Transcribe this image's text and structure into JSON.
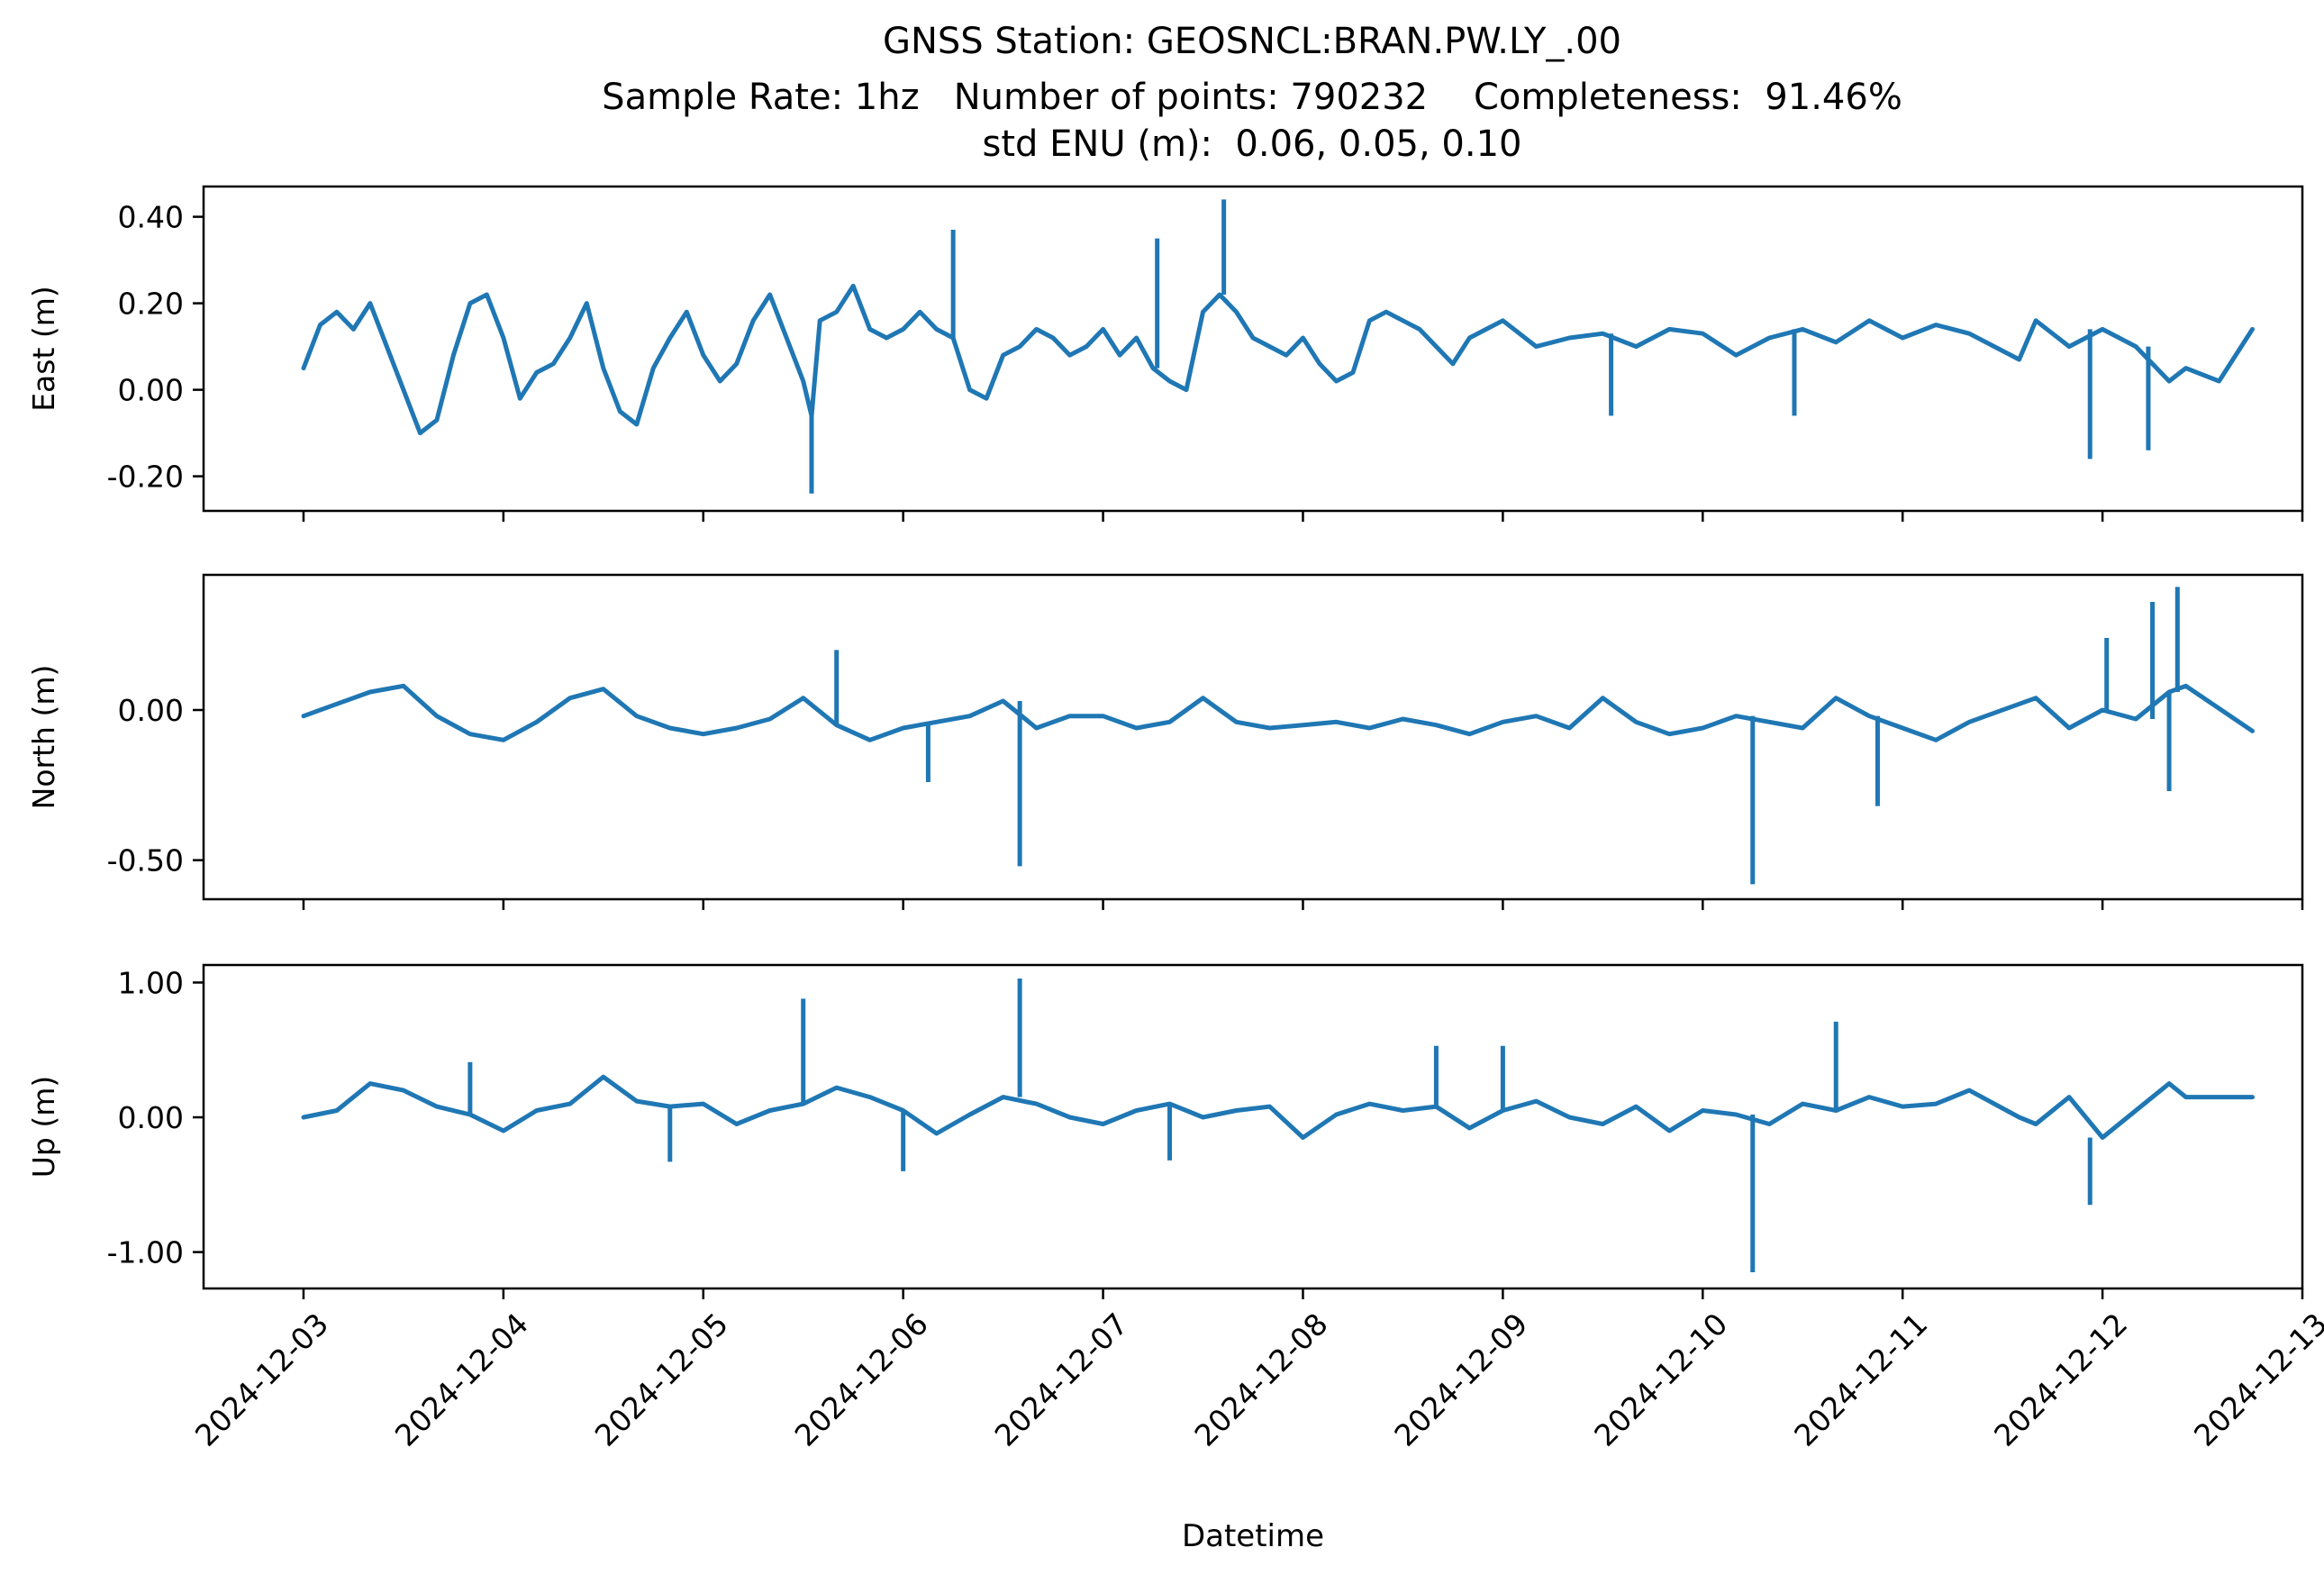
{
  "figure": {
    "title_lines": [
      "GNSS Station: GEOSNCL:BRAN.PW.LY_.00",
      "Sample Rate: 1hz   Number of points: 790232    Completeness:  91.46%",
      "std ENU (m):  0.06, 0.05, 0.10"
    ]
  },
  "chart_data": [
    {
      "type": "line",
      "ylabel": "East (m)",
      "xlabel": "",
      "ylim": [
        -0.28,
        0.47
      ],
      "yticks": [
        -0.2,
        0.0,
        0.2,
        0.4
      ],
      "ytick_labels": [
        "-0.20",
        "0.00",
        "0.20",
        "0.40"
      ],
      "x_range": [
        "2024-12-02T12:00",
        "2024-12-13T00:00"
      ],
      "xticks": [
        "2024-12-03",
        "2024-12-04",
        "2024-12-05",
        "2024-12-06",
        "2024-12-07",
        "2024-12-08",
        "2024-12-09",
        "2024-12-10",
        "2024-12-11",
        "2024-12-12",
        "2024-12-13"
      ],
      "xtick_labels_shown": false,
      "color": "#1f77b4",
      "series": [
        {
          "x": [
            "2024-12-03T00:00",
            "2024-12-03T02:00",
            "2024-12-03T04:00",
            "2024-12-03T06:00",
            "2024-12-03T08:00",
            "2024-12-03T10:00",
            "2024-12-03T12:00",
            "2024-12-03T14:00",
            "2024-12-03T16:00",
            "2024-12-03T18:00",
            "2024-12-03T20:00",
            "2024-12-03T22:00",
            "2024-12-04T00:00",
            "2024-12-04T02:00",
            "2024-12-04T04:00",
            "2024-12-04T06:00",
            "2024-12-04T08:00",
            "2024-12-04T10:00",
            "2024-12-04T12:00",
            "2024-12-04T14:00",
            "2024-12-04T16:00",
            "2024-12-04T18:00",
            "2024-12-04T20:00",
            "2024-12-04T22:00",
            "2024-12-05T00:00",
            "2024-12-05T02:00",
            "2024-12-05T04:00",
            "2024-12-05T06:00",
            "2024-12-05T08:00",
            "2024-12-05T10:00",
            "2024-12-05T12:00",
            "2024-12-05T13:00",
            "2024-12-05T14:00",
            "2024-12-05T16:00",
            "2024-12-05T18:00",
            "2024-12-05T20:00",
            "2024-12-05T22:00",
            "2024-12-06T00:00",
            "2024-12-06T02:00",
            "2024-12-06T04:00",
            "2024-12-06T06:00",
            "2024-12-06T08:00",
            "2024-12-06T10:00",
            "2024-12-06T12:00",
            "2024-12-06T14:00",
            "2024-12-06T16:00",
            "2024-12-06T18:00",
            "2024-12-06T20:00",
            "2024-12-06T22:00",
            "2024-12-07T00:00",
            "2024-12-07T02:00",
            "2024-12-07T04:00",
            "2024-12-07T06:00",
            "2024-12-07T08:00",
            "2024-12-07T10:00",
            "2024-12-07T12:00",
            "2024-12-07T14:00",
            "2024-12-07T16:00",
            "2024-12-07T18:00",
            "2024-12-07T20:00",
            "2024-12-07T22:00",
            "2024-12-08T00:00",
            "2024-12-08T02:00",
            "2024-12-08T04:00",
            "2024-12-08T06:00",
            "2024-12-08T08:00",
            "2024-12-08T10:00",
            "2024-12-08T12:00",
            "2024-12-08T14:00",
            "2024-12-08T16:00",
            "2024-12-08T18:00",
            "2024-12-08T20:00",
            "2024-12-08T22:00",
            "2024-12-09T00:00",
            "2024-12-09T04:00",
            "2024-12-09T08:00",
            "2024-12-09T12:00",
            "2024-12-09T16:00",
            "2024-12-09T20:00",
            "2024-12-10T00:00",
            "2024-12-10T04:00",
            "2024-12-10T08:00",
            "2024-12-10T12:00",
            "2024-12-10T16:00",
            "2024-12-10T20:00",
            "2024-12-11T00:00",
            "2024-12-11T04:00",
            "2024-12-11T08:00",
            "2024-12-11T14:00",
            "2024-12-11T16:00",
            "2024-12-11T20:00",
            "2024-12-12T00:00",
            "2024-12-12T04:00",
            "2024-12-12T08:00",
            "2024-12-12T10:00",
            "2024-12-12T14:00",
            "2024-12-12T18:00"
          ],
          "y": [
            0.05,
            0.15,
            0.18,
            0.14,
            0.2,
            0.1,
            0.0,
            -0.1,
            -0.07,
            0.08,
            0.2,
            0.22,
            0.12,
            -0.02,
            0.04,
            0.06,
            0.12,
            0.2,
            0.05,
            -0.05,
            -0.08,
            0.05,
            0.12,
            0.18,
            0.08,
            0.02,
            0.06,
            0.16,
            0.22,
            0.12,
            0.02,
            -0.06,
            0.16,
            0.18,
            0.24,
            0.14,
            0.12,
            0.14,
            0.18,
            0.14,
            0.12,
            0.0,
            -0.02,
            0.08,
            0.1,
            0.14,
            0.12,
            0.08,
            0.1,
            0.14,
            0.08,
            0.12,
            0.05,
            0.02,
            0.0,
            0.18,
            0.22,
            0.18,
            0.12,
            0.1,
            0.08,
            0.12,
            0.06,
            0.02,
            0.04,
            0.16,
            0.18,
            0.16,
            0.14,
            0.1,
            0.06,
            0.12,
            0.14,
            0.16,
            0.1,
            0.12,
            0.13,
            0.1,
            0.14,
            0.13,
            0.08,
            0.12,
            0.14,
            0.11,
            0.16,
            0.12,
            0.15,
            0.13,
            0.07,
            0.16,
            0.1,
            0.14,
            0.1,
            0.02,
            0.05,
            0.02,
            0.14
          ]
        }
      ],
      "spikes": [
        {
          "x": "2024-12-05T13:00",
          "y": -0.24
        },
        {
          "x": "2024-12-06T06:00",
          "y": 0.37
        },
        {
          "x": "2024-12-07T06:30",
          "y": 0.35
        },
        {
          "x": "2024-12-07T14:30",
          "y": 0.44
        },
        {
          "x": "2024-12-11T22:30",
          "y": -0.16
        },
        {
          "x": "2024-12-12T05:30",
          "y": -0.14
        },
        {
          "x": "2024-12-09T13:00",
          "y": -0.06
        },
        {
          "x": "2024-12-10T11:00",
          "y": -0.06
        }
      ]
    },
    {
      "type": "line",
      "ylabel": "North (m)",
      "xlabel": "",
      "ylim": [
        -0.63,
        0.45
      ],
      "yticks": [
        -0.5,
        0.0
      ],
      "ytick_labels": [
        "-0.50",
        "0.00"
      ],
      "x_range": [
        "2024-12-02T12:00",
        "2024-12-13T00:00"
      ],
      "xticks": [
        "2024-12-03",
        "2024-12-04",
        "2024-12-05",
        "2024-12-06",
        "2024-12-07",
        "2024-12-08",
        "2024-12-09",
        "2024-12-10",
        "2024-12-11",
        "2024-12-12",
        "2024-12-13"
      ],
      "xtick_labels_shown": false,
      "color": "#1f77b4",
      "series": [
        {
          "x": [
            "2024-12-03T00:00",
            "2024-12-03T04:00",
            "2024-12-03T08:00",
            "2024-12-03T12:00",
            "2024-12-03T16:00",
            "2024-12-03T20:00",
            "2024-12-04T00:00",
            "2024-12-04T04:00",
            "2024-12-04T08:00",
            "2024-12-04T12:00",
            "2024-12-04T16:00",
            "2024-12-04T20:00",
            "2024-12-05T00:00",
            "2024-12-05T04:00",
            "2024-12-05T08:00",
            "2024-12-05T12:00",
            "2024-12-05T16:00",
            "2024-12-05T20:00",
            "2024-12-06T00:00",
            "2024-12-06T04:00",
            "2024-12-06T08:00",
            "2024-12-06T12:00",
            "2024-12-06T16:00",
            "2024-12-06T20:00",
            "2024-12-07T00:00",
            "2024-12-07T04:00",
            "2024-12-07T08:00",
            "2024-12-07T12:00",
            "2024-12-07T16:00",
            "2024-12-07T20:00",
            "2024-12-08T00:00",
            "2024-12-08T04:00",
            "2024-12-08T08:00",
            "2024-12-08T12:00",
            "2024-12-08T16:00",
            "2024-12-08T20:00",
            "2024-12-09T00:00",
            "2024-12-09T04:00",
            "2024-12-09T08:00",
            "2024-12-09T12:00",
            "2024-12-09T16:00",
            "2024-12-09T20:00",
            "2024-12-10T00:00",
            "2024-12-10T04:00",
            "2024-12-10T08:00",
            "2024-12-10T12:00",
            "2024-12-10T16:00",
            "2024-12-10T20:00",
            "2024-12-11T00:00",
            "2024-12-11T04:00",
            "2024-12-11T08:00",
            "2024-12-11T14:00",
            "2024-12-11T16:00",
            "2024-12-11T20:00",
            "2024-12-12T00:00",
            "2024-12-12T04:00",
            "2024-12-12T08:00",
            "2024-12-12T10:00",
            "2024-12-12T18:00"
          ],
          "y": [
            -0.02,
            0.02,
            0.06,
            0.08,
            -0.02,
            -0.08,
            -0.1,
            -0.04,
            0.04,
            0.07,
            -0.02,
            -0.06,
            -0.08,
            -0.06,
            -0.03,
            0.04,
            -0.05,
            -0.1,
            -0.06,
            -0.04,
            -0.02,
            0.03,
            -0.06,
            -0.02,
            -0.02,
            -0.06,
            -0.04,
            0.04,
            -0.04,
            -0.06,
            -0.05,
            -0.04,
            -0.06,
            -0.03,
            -0.05,
            -0.08,
            -0.04,
            -0.02,
            -0.06,
            0.04,
            -0.04,
            -0.08,
            -0.06,
            -0.02,
            -0.04,
            -0.06,
            0.04,
            -0.02,
            -0.06,
            -0.1,
            -0.04,
            0.02,
            0.04,
            -0.06,
            0.0,
            -0.03,
            0.06,
            0.08,
            -0.07
          ]
        }
      ],
      "spikes": [
        {
          "x": "2024-12-06T14:00",
          "y": -0.52
        },
        {
          "x": "2024-12-05T16:00",
          "y": 0.2
        },
        {
          "x": "2024-12-10T06:00",
          "y": -0.58
        },
        {
          "x": "2024-12-12T00:30",
          "y": 0.24
        },
        {
          "x": "2024-12-12T06:00",
          "y": 0.36
        },
        {
          "x": "2024-12-12T09:00",
          "y": 0.41
        },
        {
          "x": "2024-12-12T08:00",
          "y": -0.27
        },
        {
          "x": "2024-12-10T21:00",
          "y": -0.32
        },
        {
          "x": "2024-12-06T03:00",
          "y": -0.24
        }
      ]
    },
    {
      "type": "line",
      "ylabel": "Up (m)",
      "xlabel": "Datetime",
      "ylim": [
        -1.27,
        1.13
      ],
      "yticks": [
        -1.0,
        0.0,
        1.0
      ],
      "ytick_labels": [
        "-1.00",
        "0.00",
        "1.00"
      ],
      "x_range": [
        "2024-12-02T12:00",
        "2024-12-13T00:00"
      ],
      "xticks": [
        "2024-12-03",
        "2024-12-04",
        "2024-12-05",
        "2024-12-06",
        "2024-12-07",
        "2024-12-08",
        "2024-12-09",
        "2024-12-10",
        "2024-12-11",
        "2024-12-12",
        "2024-12-13"
      ],
      "xtick_labels_shown": true,
      "color": "#1f77b4",
      "series": [
        {
          "x": [
            "2024-12-03T00:00",
            "2024-12-03T04:00",
            "2024-12-03T08:00",
            "2024-12-03T12:00",
            "2024-12-03T16:00",
            "2024-12-03T20:00",
            "2024-12-04T00:00",
            "2024-12-04T04:00",
            "2024-12-04T08:00",
            "2024-12-04T12:00",
            "2024-12-04T16:00",
            "2024-12-04T20:00",
            "2024-12-05T00:00",
            "2024-12-05T04:00",
            "2024-12-05T08:00",
            "2024-12-05T12:00",
            "2024-12-05T16:00",
            "2024-12-05T20:00",
            "2024-12-06T00:00",
            "2024-12-06T04:00",
            "2024-12-06T08:00",
            "2024-12-06T12:00",
            "2024-12-06T16:00",
            "2024-12-06T20:00",
            "2024-12-07T00:00",
            "2024-12-07T04:00",
            "2024-12-07T08:00",
            "2024-12-07T12:00",
            "2024-12-07T16:00",
            "2024-12-07T20:00",
            "2024-12-08T00:00",
            "2024-12-08T04:00",
            "2024-12-08T08:00",
            "2024-12-08T12:00",
            "2024-12-08T16:00",
            "2024-12-08T20:00",
            "2024-12-09T00:00",
            "2024-12-09T04:00",
            "2024-12-09T08:00",
            "2024-12-09T12:00",
            "2024-12-09T16:00",
            "2024-12-09T20:00",
            "2024-12-10T00:00",
            "2024-12-10T04:00",
            "2024-12-10T08:00",
            "2024-12-10T12:00",
            "2024-12-10T16:00",
            "2024-12-10T20:00",
            "2024-12-11T00:00",
            "2024-12-11T04:00",
            "2024-12-11T08:00",
            "2024-12-11T14:00",
            "2024-12-11T16:00",
            "2024-12-11T20:00",
            "2024-12-12T00:00",
            "2024-12-12T04:00",
            "2024-12-12T08:00",
            "2024-12-12T10:00",
            "2024-12-12T18:00"
          ],
          "y": [
            0.0,
            0.05,
            0.25,
            0.2,
            0.08,
            0.02,
            -0.1,
            0.05,
            0.1,
            0.3,
            0.12,
            0.08,
            0.1,
            -0.05,
            0.05,
            0.1,
            0.22,
            0.15,
            0.05,
            -0.12,
            0.02,
            0.15,
            0.1,
            0.0,
            -0.05,
            0.05,
            0.1,
            0.0,
            0.05,
            0.08,
            -0.15,
            0.02,
            0.1,
            0.05,
            0.08,
            -0.08,
            0.05,
            0.12,
            0.0,
            -0.05,
            0.08,
            -0.1,
            0.05,
            0.02,
            -0.05,
            0.1,
            0.05,
            0.15,
            0.08,
            0.1,
            0.2,
            0.0,
            -0.05,
            0.15,
            -0.15,
            0.05,
            0.25,
            0.15,
            0.15
          ]
        }
      ],
      "spikes": [
        {
          "x": "2024-12-05T12:00",
          "y": 0.88
        },
        {
          "x": "2024-12-06T14:00",
          "y": 1.03
        },
        {
          "x": "2024-12-10T06:00",
          "y": -1.15
        },
        {
          "x": "2024-12-10T16:00",
          "y": 0.71
        },
        {
          "x": "2024-12-11T22:30",
          "y": -0.65
        },
        {
          "x": "2024-12-03T20:00",
          "y": 0.41
        },
        {
          "x": "2024-12-04T20:00",
          "y": -0.33
        },
        {
          "x": "2024-12-08T16:00",
          "y": 0.53
        },
        {
          "x": "2024-12-09T00:00",
          "y": 0.53
        },
        {
          "x": "2024-12-06T00:00",
          "y": -0.4
        },
        {
          "x": "2024-12-07T08:00",
          "y": -0.32
        }
      ]
    }
  ]
}
